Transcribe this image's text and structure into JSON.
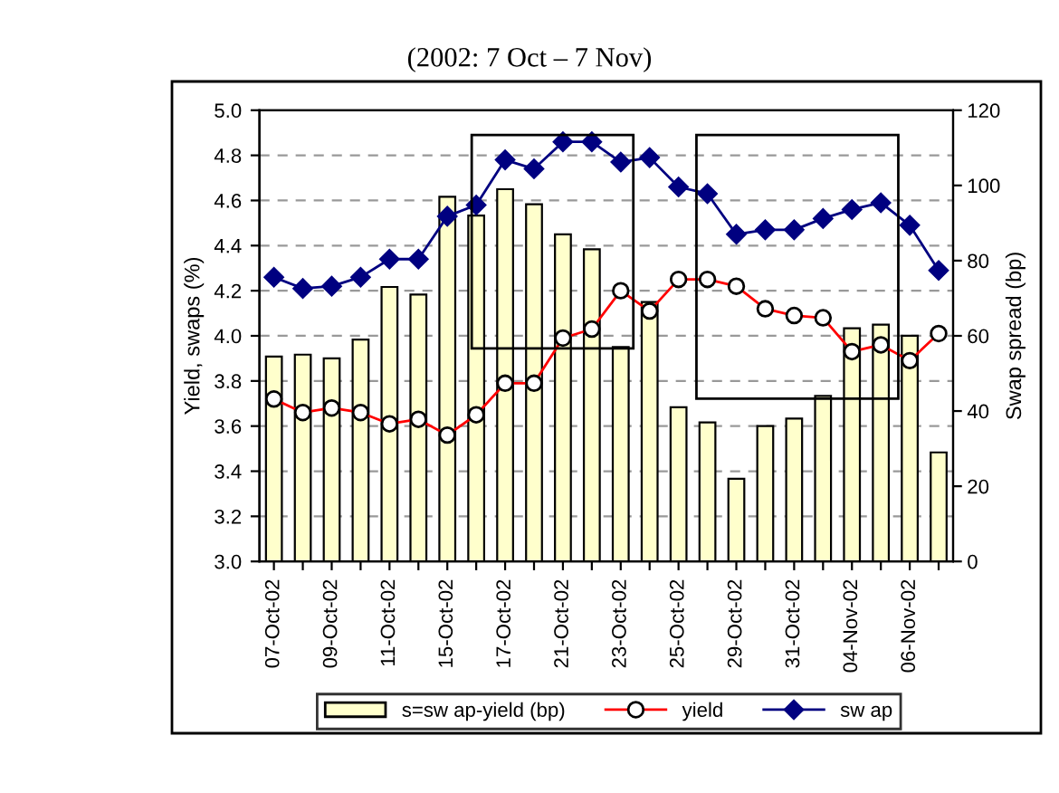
{
  "chart_data": {
    "type": "bar",
    "title": "(2002: 7 Oct – 7 Nov)",
    "ylabel": "Yield, swaps (%)",
    "y2label": "Swap spread (bp)",
    "categories": [
      "07-Oct-02",
      null,
      "09-Oct-02",
      null,
      "11-Oct-02",
      null,
      "15-Oct-02",
      null,
      "17-Oct-02",
      null,
      "21-Oct-02",
      null,
      "23-Oct-02",
      null,
      "25-Oct-02",
      null,
      "29-Oct-02",
      null,
      "31-Oct-02",
      null,
      "04-Nov-02",
      null,
      "06-Nov-02",
      null
    ],
    "series": [
      {
        "name": "s=sw ap-yield (bp)",
        "axis": "y2",
        "color": "#ffffcc",
        "values": [
          54.5,
          55,
          54,
          59,
          73,
          71,
          97,
          92,
          99,
          95,
          87,
          83,
          57,
          69,
          41,
          37,
          22,
          36,
          38,
          44,
          62,
          63,
          60,
          29
        ]
      },
      {
        "name": "yield",
        "type": "line",
        "marker": "circle",
        "color": "#ff0000",
        "values": [
          3.72,
          3.66,
          3.68,
          3.66,
          3.61,
          3.63,
          3.56,
          3.65,
          3.79,
          3.79,
          3.99,
          4.03,
          4.2,
          4.11,
          4.25,
          4.25,
          4.22,
          4.12,
          4.09,
          4.08,
          3.93,
          3.96,
          3.89,
          4.01
        ]
      },
      {
        "name": "sw ap",
        "type": "line",
        "marker": "diamond",
        "color": "#000080",
        "values": [
          4.26,
          4.21,
          4.22,
          4.26,
          4.34,
          4.34,
          4.53,
          4.58,
          4.78,
          4.74,
          4.86,
          4.86,
          4.77,
          4.79,
          4.66,
          4.63,
          4.45,
          4.47,
          4.47,
          4.52,
          4.56,
          4.59,
          4.49,
          4.29
        ]
      }
    ],
    "ylim": [
      3.0,
      5.0
    ],
    "yticks": [
      {
        "value": 3.0,
        "label": "3.0"
      },
      {
        "value": 3.2,
        "label": "3.2"
      },
      {
        "value": 3.4,
        "label": "3.4"
      },
      {
        "value": 3.6,
        "label": "3.6"
      },
      {
        "value": 3.8,
        "label": "3.8"
      },
      {
        "value": 4.0,
        "label": "4.0"
      },
      {
        "value": 4.2,
        "label": "4.2"
      },
      {
        "value": 4.4,
        "label": "4.4"
      },
      {
        "value": 4.6,
        "label": "4.6"
      },
      {
        "value": 4.8,
        "label": "4.8"
      },
      {
        "value": 5.0,
        "label": "5.0"
      }
    ],
    "y2lim": [
      0,
      120
    ],
    "y2ticks": [
      0,
      20,
      40,
      60,
      80,
      100,
      120
    ],
    "grid": "y",
    "legend": "bottom"
  }
}
